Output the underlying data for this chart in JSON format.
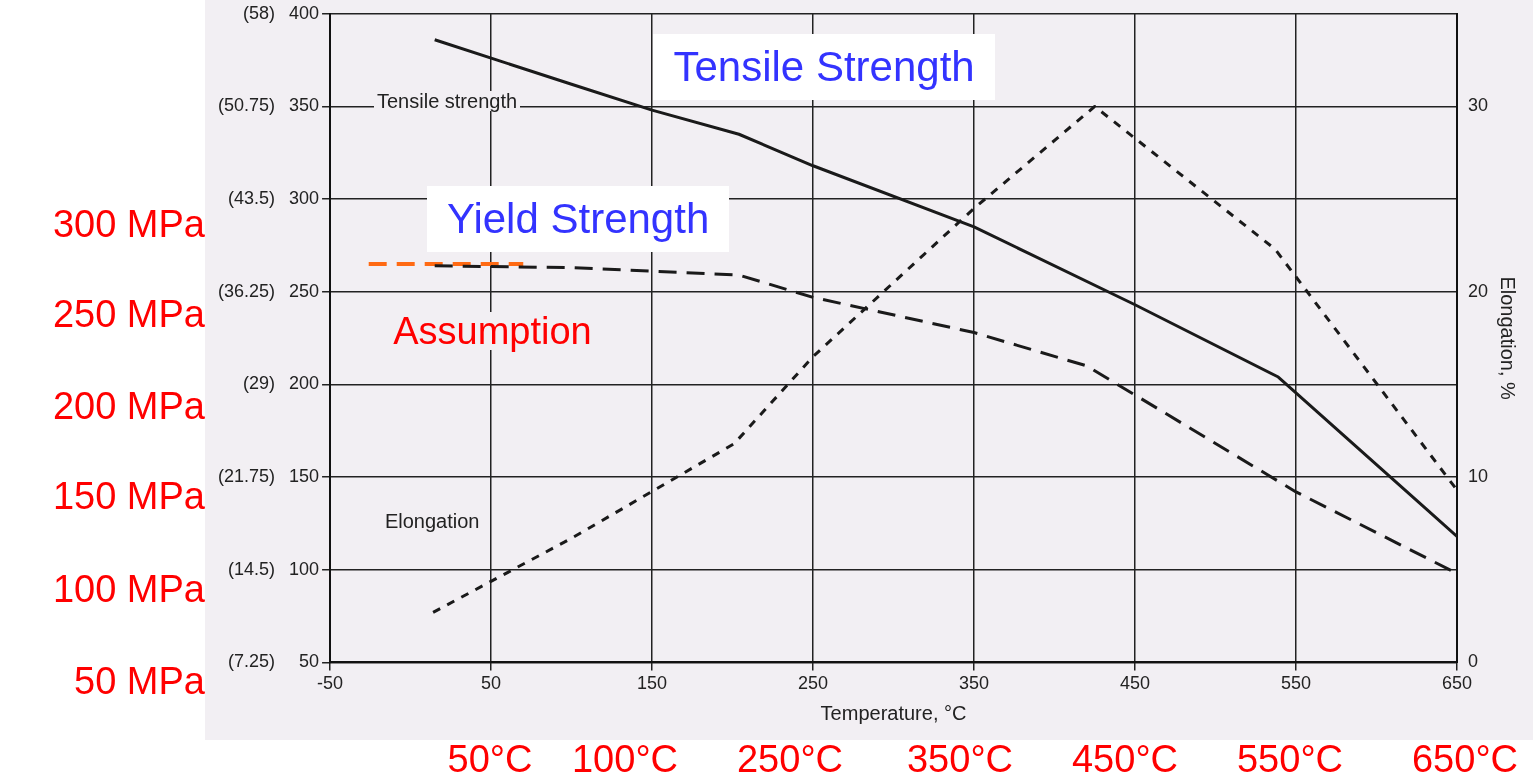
{
  "chart_data": {
    "type": "line",
    "xlabel": "Temperature, °C",
    "y2label": "Elongation, %",
    "xlim": [
      -50,
      650
    ],
    "xticks": [
      -50,
      50,
      150,
      250,
      350,
      450,
      550,
      650
    ],
    "ylim": [
      50,
      400
    ],
    "yticks": [
      50,
      100,
      150,
      200,
      250,
      300,
      350,
      400
    ],
    "y3lim": [
      7.25,
      58
    ],
    "y3ticks": [
      {
        "value": 7.25,
        "label": "(7.25)"
      },
      {
        "value": 14.5,
        "label": "(14.5)"
      },
      {
        "value": 21.75,
        "label": "(21.75)"
      },
      {
        "value": 29,
        "label": "(29)"
      },
      {
        "value": 36.25,
        "label": "(36.25)"
      },
      {
        "value": 43.5,
        "label": "(43.5)"
      },
      {
        "value": 50.75,
        "label": "(50.75)"
      },
      {
        "value": 58,
        "label": "(58)"
      }
    ],
    "y2lim": [
      0,
      35
    ],
    "y2ticks": [
      0,
      10,
      20,
      30
    ],
    "grid": true,
    "legend": false,
    "marker": "none",
    "series": [
      {
        "color": "#1a1a1a",
        "line_style": "solid",
        "x": [
          15,
          100,
          150,
          204,
          250,
          350,
          450,
          539,
          650
        ],
        "values": [
          386,
          362,
          348,
          335,
          318,
          285,
          243,
          204,
          118
        ]
      },
      {
        "color": "#1a1a1a",
        "line_style": "dashed",
        "x": [
          15,
          100,
          204,
          250,
          350,
          420,
          550,
          650
        ],
        "values": [
          264,
          263,
          259,
          247,
          228,
          210,
          142,
          98
        ]
      },
      {
        "color": "#1a1a1a",
        "line_style": "dotted",
        "axis": "y2",
        "x": [
          14,
          100,
          201,
          250,
          350,
          425,
          537,
          650
        ],
        "values": [
          2.7,
          6.7,
          11.8,
          16.5,
          24.5,
          30,
          22.3,
          9.3
        ]
      },
      {
        "color": "#ff6a13",
        "line_style": "dashed",
        "x": [
          -26,
          70
        ],
        "values": [
          265,
          265
        ]
      }
    ],
    "annotations": [
      "Tensile strength",
      "Elongation",
      "Tensile Strength",
      "Yield Strength",
      "Assumption",
      "300 MPa",
      "250 MPa",
      "200 MPa",
      "150 MPa",
      "100 MPa",
      "50 MPa",
      "50°C",
      "100°C",
      "250°C",
      "350°C",
      "450°C",
      "550°C",
      "650°C"
    ]
  }
}
